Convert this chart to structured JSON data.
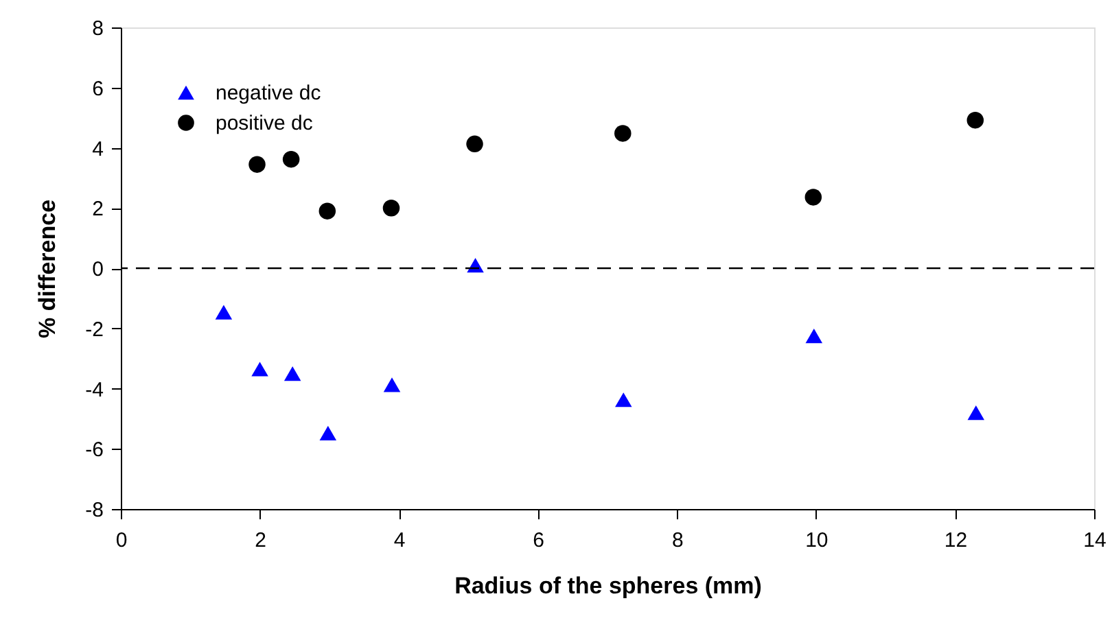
{
  "chart_data": {
    "type": "scatter",
    "xlabel": "Radius of the spheres (mm)",
    "ylabel": "% difference",
    "xlim": [
      0,
      14
    ],
    "xticks": [
      0,
      2,
      4,
      6,
      8,
      10,
      12,
      14
    ],
    "ylim": [
      -8,
      8
    ],
    "yticks": [
      -8,
      -6,
      -4,
      -2,
      0,
      2,
      4,
      6,
      8
    ],
    "grid": false,
    "legend": "top left",
    "ref_lines": [
      {
        "axis": "y",
        "value": 0,
        "color": "#000000",
        "line_style": "dashed"
      }
    ],
    "series": [
      {
        "name": "negative dc",
        "color": "#0000ff",
        "marker": "triangle",
        "x": [
          1.48,
          2.0,
          2.47,
          2.98,
          3.9,
          5.1,
          7.23,
          9.97,
          12.3
        ],
        "values": [
          -1.46,
          -3.35,
          -3.5,
          -5.48,
          -3.87,
          0.1,
          -4.37,
          -2.25,
          -4.8
        ]
      },
      {
        "name": "positive dc",
        "color": "#000000",
        "marker": "circle",
        "x": [
          1.96,
          2.45,
          2.97,
          3.89,
          5.09,
          7.22,
          9.96,
          12.29
        ],
        "values": [
          3.45,
          3.62,
          1.9,
          2.0,
          4.13,
          4.48,
          2.36,
          4.92
        ]
      }
    ]
  }
}
